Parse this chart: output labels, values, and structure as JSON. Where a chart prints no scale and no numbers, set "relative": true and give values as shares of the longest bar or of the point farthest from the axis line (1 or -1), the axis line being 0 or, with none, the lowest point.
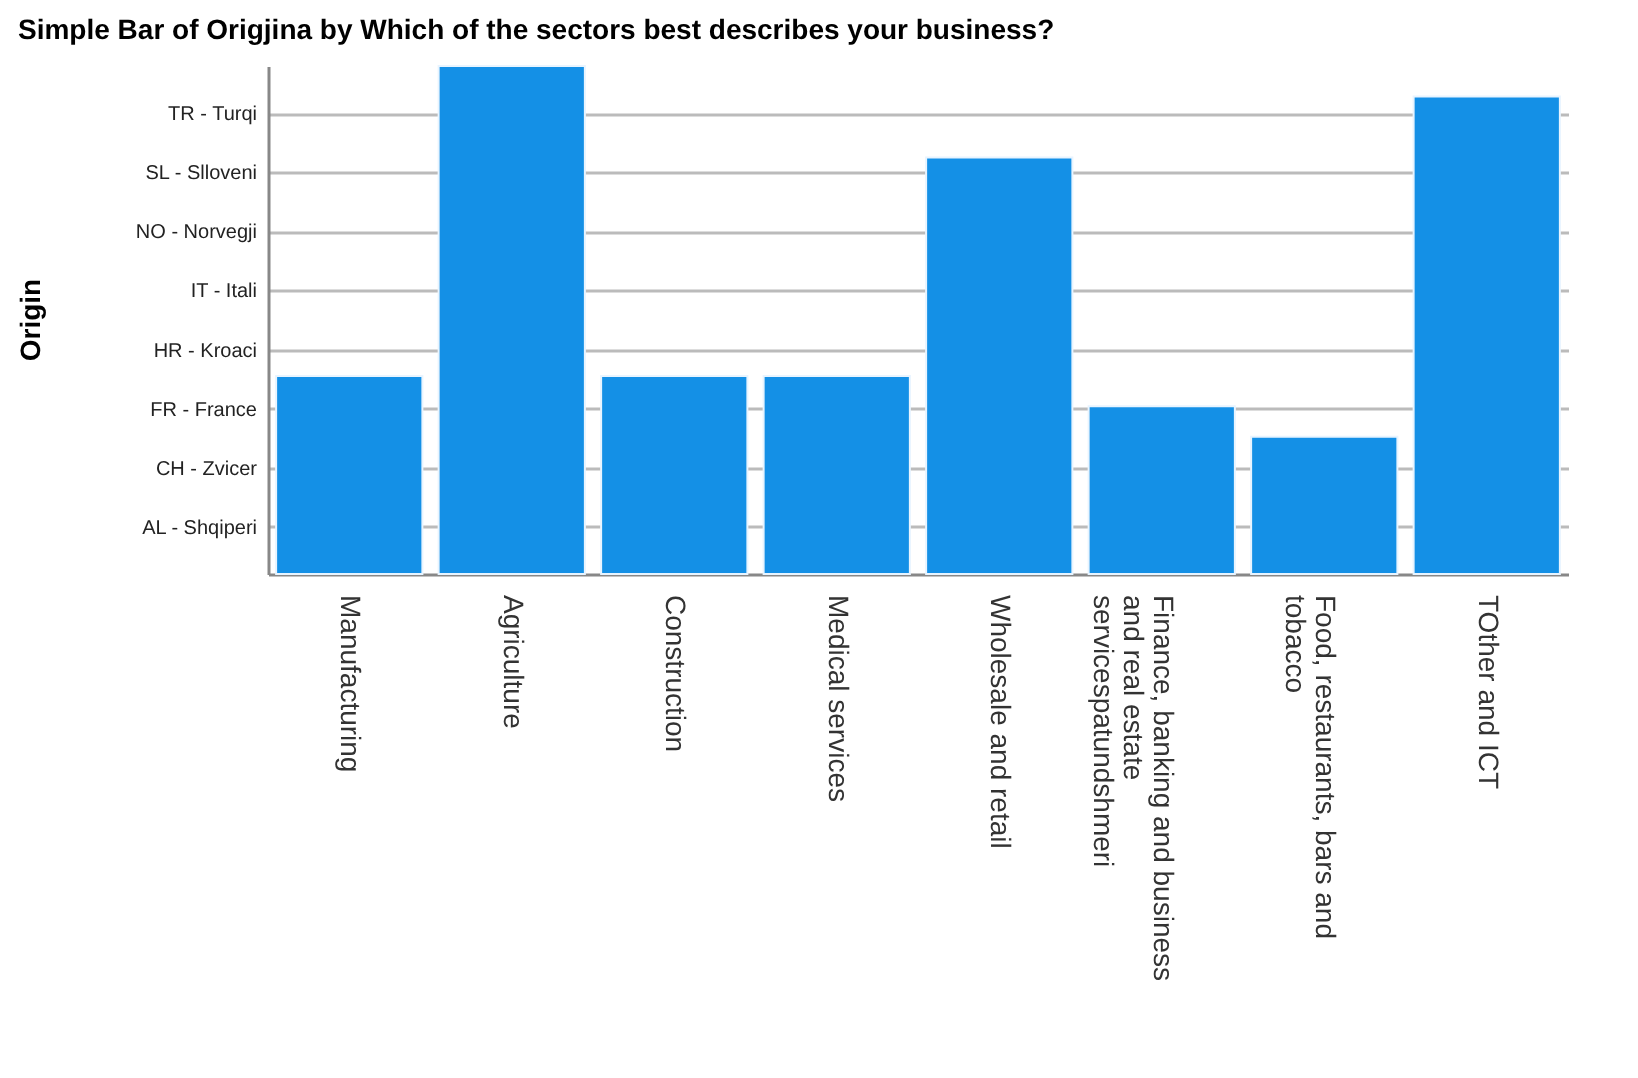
{
  "chart_data": {
    "type": "bar",
    "title": "Simple Bar of Origjina by Which of the sectors best describes your business?",
    "categories": [
      "Manufacturing",
      "Agriculture",
      "Construction",
      "Medical services",
      "Wholesale and retail",
      "Finance, banking and business and real estate servicespatundshmeri",
      "Food, restaurants, bars and tobacco",
      "TOther and ICT"
    ],
    "values": [
      0.39,
      1,
      0.39,
      0.39,
      0.82,
      0.33,
      0.27,
      0.94
    ],
    "relative": true,
    "color": "#1490e6",
    "annotations": [
      "Origin",
      "TR - Turqi",
      "SL - Slloveni",
      "NO - Norvegji",
      "IT - Itali",
      "HR - Kroaci",
      "FR - France",
      "CH - Zvicer",
      "AL - Shqiperi"
    ],
    "grid": "y"
  }
}
